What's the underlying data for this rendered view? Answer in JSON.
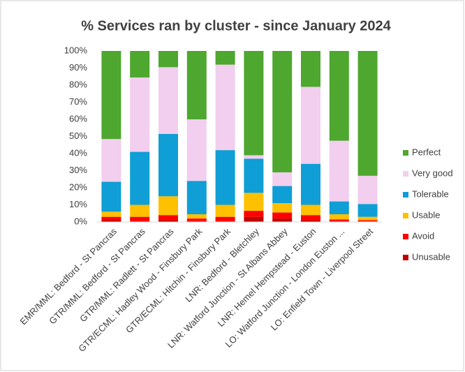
{
  "chart_data": {
    "type": "stacked_bar",
    "title": "% Services ran by cluster - since January 2024",
    "categories": [
      "EMR/MML: Bedford - St Pancras",
      "GTR/MML: Bedford - St Pancras",
      "GTR/MML: Radlett - St Pancras",
      "GTR/ECML: Hadley Wood - Finsbury Park",
      "GTR/ECML: Hitchin - Finsbury Park",
      "LNR: Bedford - Bletchley",
      "LNR: Watford Junction - St Albans Abbey",
      "LNR: Hemel Hempstead - Euston",
      "LO: Watford Junction - London Euston ...",
      "LO: Enfield Town - Liverpool Street"
    ],
    "series": [
      {
        "name": "Unusable",
        "color": "#c00000",
        "values": [
          1,
          0.5,
          1,
          0.5,
          0.5,
          3,
          2,
          1,
          0.5,
          0.3
        ]
      },
      {
        "name": "Avoid",
        "color": "#ff0000",
        "values": [
          2,
          2.5,
          3,
          1.5,
          2.5,
          3.5,
          3.5,
          3,
          1,
          0.7
        ]
      },
      {
        "name": "Usable",
        "color": "#ffc000",
        "values": [
          3,
          7,
          11,
          2.5,
          7,
          10.5,
          5.5,
          6,
          3,
          2
        ]
      },
      {
        "name": "Tolerable",
        "color": "#0f9ed5",
        "values": [
          17.5,
          31,
          36.5,
          19.5,
          32,
          20,
          10,
          24,
          7.5,
          7.5
        ]
      },
      {
        "name": "Very good",
        "color": "#f2ceef",
        "values": [
          25,
          43.5,
          39,
          36,
          50,
          2,
          8,
          45,
          35.5,
          16.5
        ]
      },
      {
        "name": "Perfect",
        "color": "#4ea72e",
        "values": [
          51.5,
          15.5,
          9.5,
          40,
          8,
          61,
          71,
          21,
          52.5,
          73
        ]
      }
    ],
    "ylim": [
      0,
      100
    ],
    "yticks": [
      {
        "value": 0,
        "label": "0%"
      },
      {
        "value": 10,
        "label": "10%"
      },
      {
        "value": 20,
        "label": "20%"
      },
      {
        "value": 30,
        "label": "30%"
      },
      {
        "value": 40,
        "label": "40%"
      },
      {
        "value": 50,
        "label": "50%"
      },
      {
        "value": 60,
        "label": "60%"
      },
      {
        "value": 70,
        "label": "70%"
      },
      {
        "value": 80,
        "label": "80%"
      },
      {
        "value": 90,
        "label": "90%"
      },
      {
        "value": 100,
        "label": "100%"
      }
    ],
    "grid": false,
    "legend": "right"
  }
}
